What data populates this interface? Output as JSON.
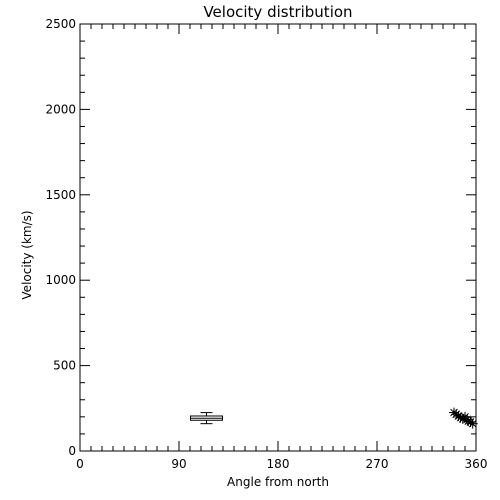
{
  "chart_data": {
    "type": "scatter",
    "title": "Velocity distribution",
    "xlabel": "Angle from north",
    "ylabel": "Velocity (km/s)",
    "xlim": [
      0,
      360
    ],
    "ylim": [
      0,
      2500
    ],
    "xticks": [
      0,
      90,
      180,
      270,
      360
    ],
    "xtick_labels": [
      "0",
      "90",
      "180",
      "270",
      "360"
    ],
    "x_minor_step": 10,
    "yticks": [
      0,
      500,
      1000,
      1500,
      2000,
      2500
    ],
    "ytick_labels": [
      "0",
      "500",
      "1000",
      "1500",
      "2000",
      "2500"
    ],
    "y_minor_step": 100,
    "grid": false,
    "boxplot": {
      "x": 115,
      "whisker_low": 160,
      "q1": 180,
      "median": 192,
      "q3": 205,
      "whisker_high": 225
    },
    "points": [
      {
        "x": 340,
        "y": 225
      },
      {
        "x": 342,
        "y": 215
      },
      {
        "x": 344,
        "y": 205
      },
      {
        "x": 346,
        "y": 195
      },
      {
        "x": 348,
        "y": 188
      },
      {
        "x": 350,
        "y": 200
      },
      {
        "x": 352,
        "y": 185
      },
      {
        "x": 353,
        "y": 175
      },
      {
        "x": 355,
        "y": 170
      },
      {
        "x": 357,
        "y": 160
      }
    ],
    "colors": {
      "axes": "#000000",
      "background": "#ffffff",
      "marks": "#000000"
    }
  }
}
